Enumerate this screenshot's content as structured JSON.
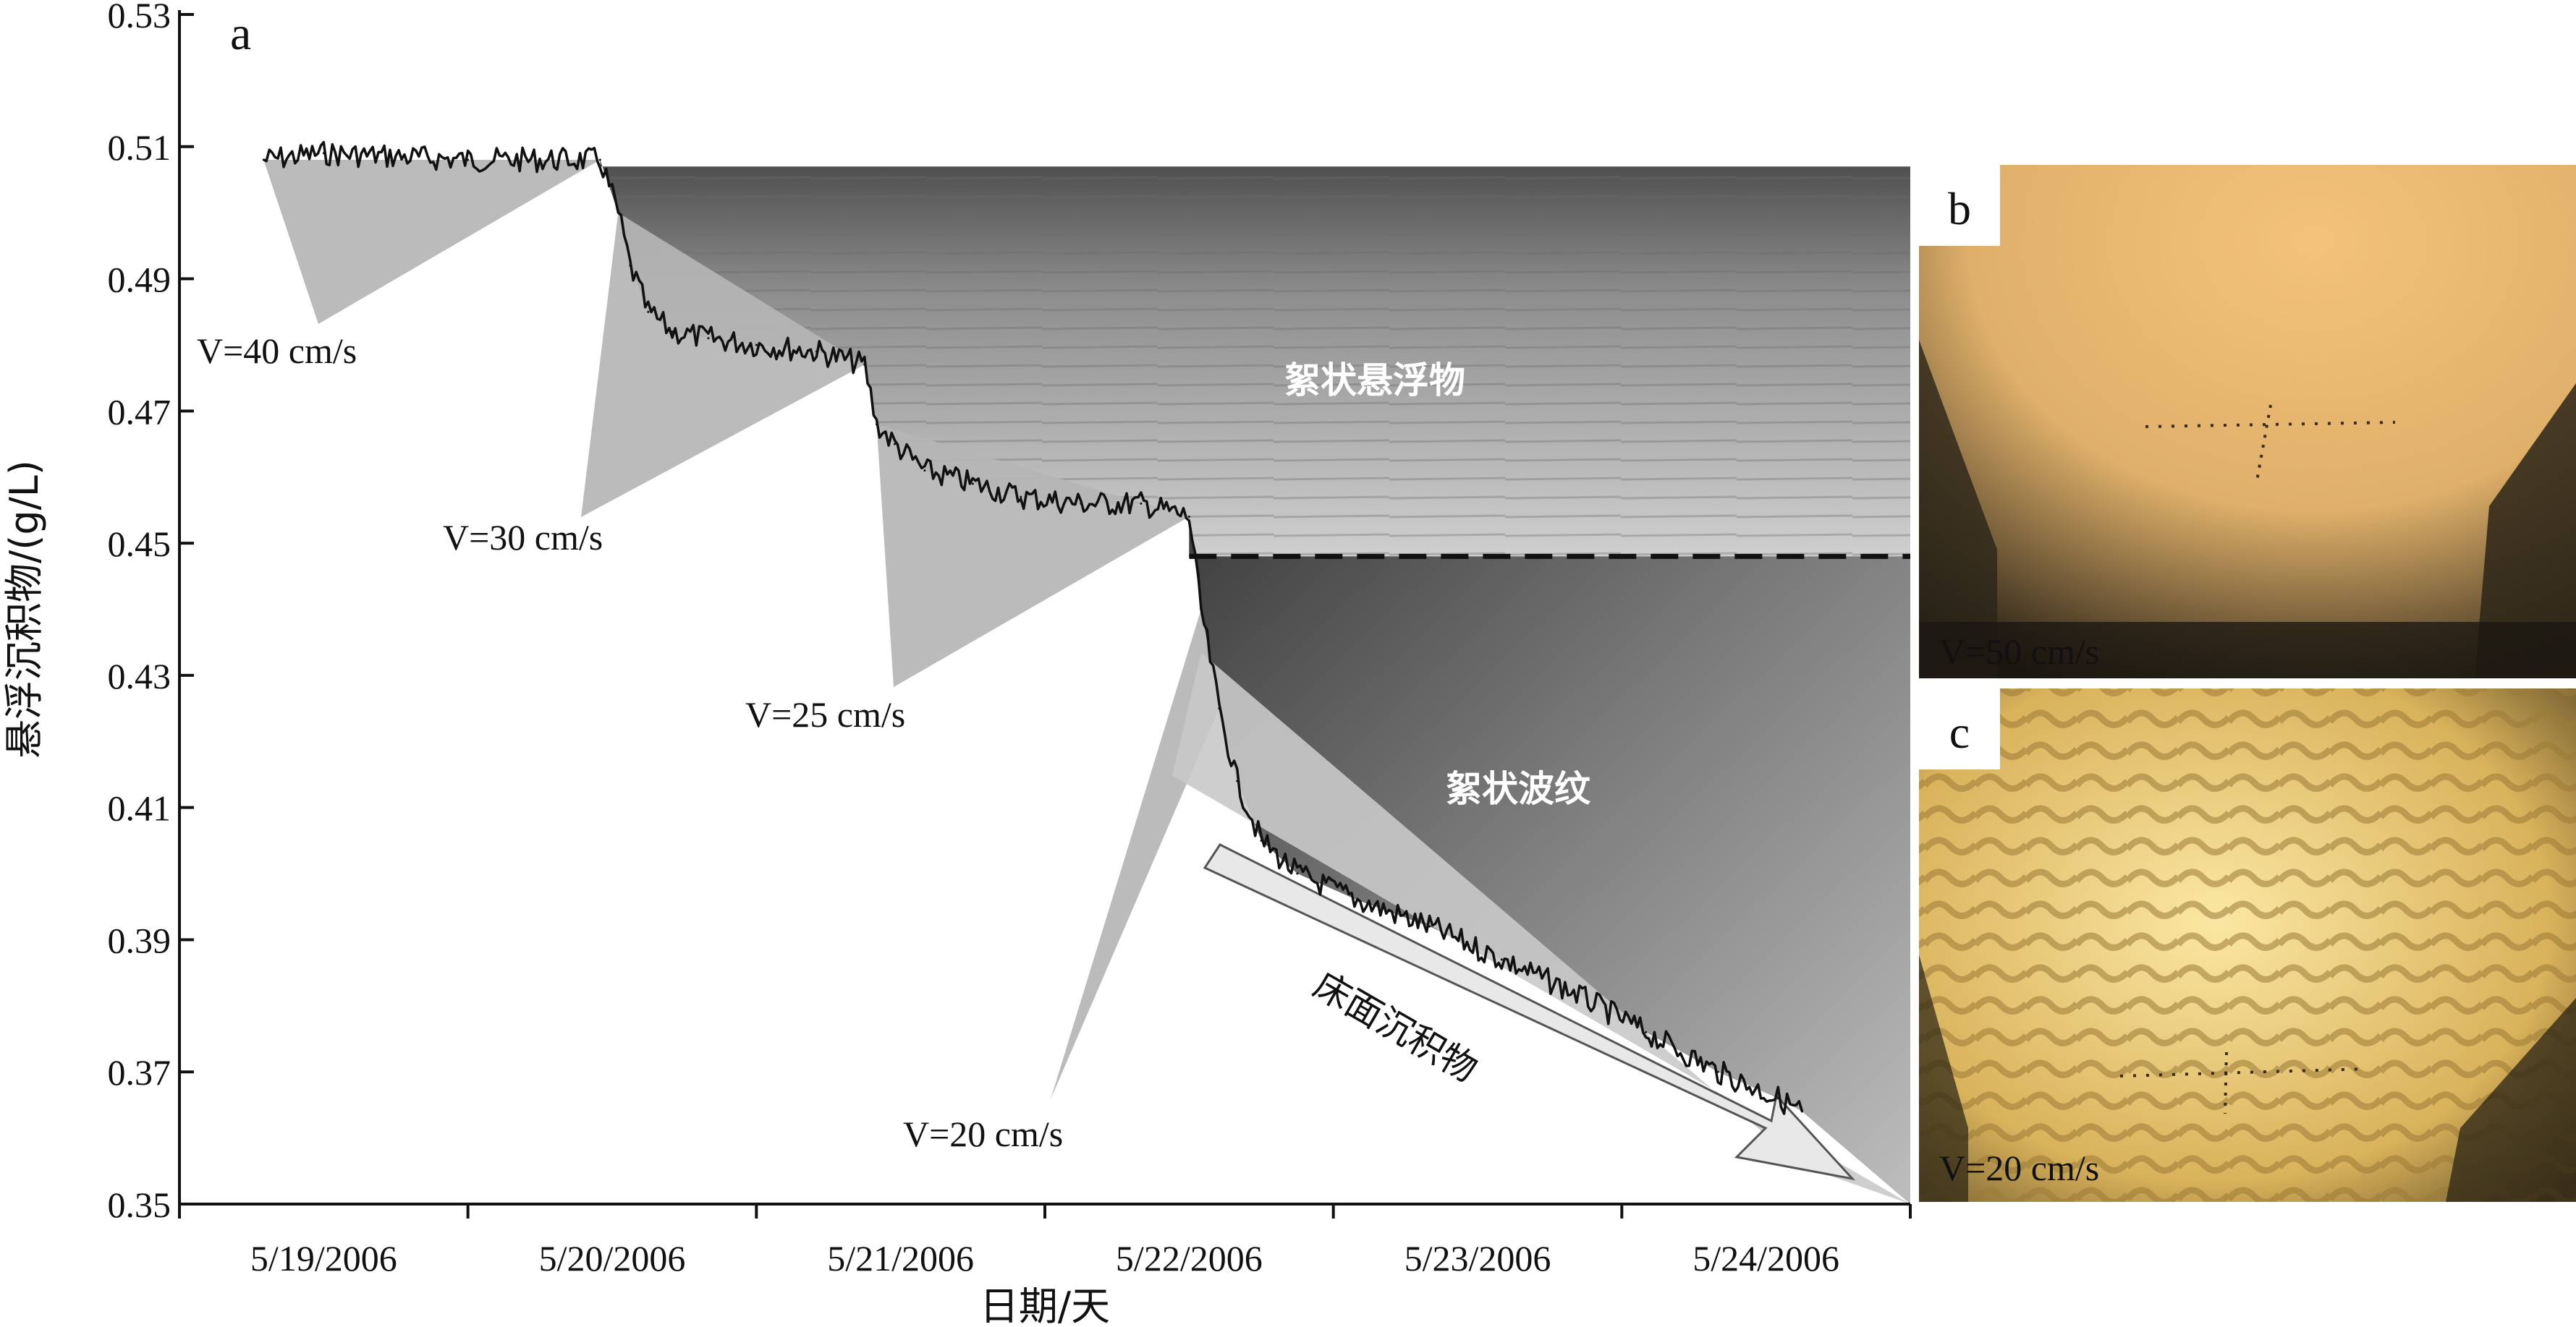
{
  "panel_a": {
    "label": "a",
    "annotation_1": "絮状悬浮物",
    "annotation_2": "絮状波纹",
    "annotation_3": "床面沉积物"
  },
  "panel_b": {
    "label": "b",
    "speed_label": "V=50 cm/s"
  },
  "panel_c": {
    "label": "c",
    "speed_label": "V=20 cm/s"
  },
  "colors": {
    "series": "#111111",
    "wedge": "#b5b5b5",
    "photo_b": "#e8b96a",
    "photo_c": "#e6bd5a"
  },
  "chart_data": {
    "type": "line",
    "xlabel": "日期/天",
    "ylabel": "悬浮沉积物/(g/L)",
    "x_ticks": [
      "5/19/2006",
      "5/20/2006",
      "5/21/2006",
      "5/22/2006",
      "5/23/2006",
      "5/24/2006"
    ],
    "y_ticks": [
      "0.35",
      "0.37",
      "0.39",
      "0.41",
      "0.43",
      "0.45",
      "0.47",
      "0.49",
      "0.51",
      "0.53"
    ],
    "ylim": [
      0.35,
      0.53
    ],
    "xlim": [
      "2006-05-18T12:00",
      "2006-05-24T12:00"
    ],
    "grid": false,
    "series": [
      {
        "x": [
          "2006-05-18T19:00",
          "2006-05-19T00:00",
          "2006-05-19T12:00",
          "2006-05-19T23:00",
          "2006-05-20T00:30",
          "2006-05-20T01:30",
          "2006-05-20T03:00",
          "2006-05-20T05:00",
          "2006-05-20T08:00",
          "2006-05-20T12:00",
          "2006-05-20T17:00",
          "2006-05-20T21:00",
          "2006-05-20T22:00",
          "2006-05-20T23:30",
          "2006-05-21T02:00",
          "2006-05-21T06:00",
          "2006-05-21T10:00",
          "2006-05-21T15:00",
          "2006-05-21T20:00",
          "2006-05-22T00:00",
          "2006-05-22T01:00",
          "2006-05-22T02:30",
          "2006-05-22T04:00",
          "2006-05-22T06:00",
          "2006-05-22T09:00",
          "2006-05-22T14:00",
          "2006-05-22T20:00",
          "2006-05-23T02:00",
          "2006-05-23T08:00",
          "2006-05-23T14:00",
          "2006-05-23T20:00",
          "2006-05-24T01:00",
          "2006-05-24T03:00"
        ],
        "y": [
          0.508,
          0.509,
          0.508,
          0.508,
          0.5,
          0.492,
          0.485,
          0.482,
          0.481,
          0.48,
          0.479,
          0.477,
          0.468,
          0.465,
          0.461,
          0.459,
          0.457,
          0.456,
          0.456,
          0.454,
          0.44,
          0.425,
          0.414,
          0.405,
          0.4,
          0.396,
          0.392,
          0.387,
          0.382,
          0.376,
          0.37,
          0.366,
          0.364
        ]
      }
    ],
    "annotations": [
      "V=40 cm/s",
      "V=30 cm/s",
      "V=25 cm/s",
      "V=20 cm/s"
    ]
  }
}
